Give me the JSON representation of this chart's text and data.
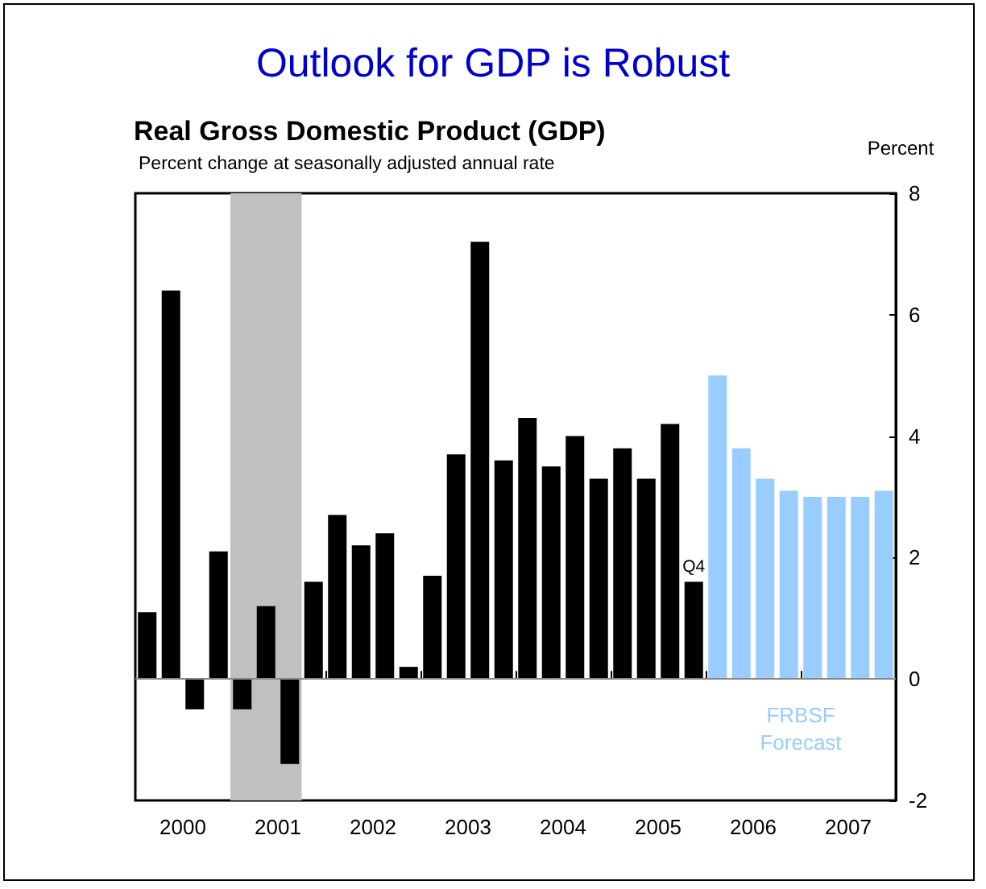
{
  "chart_data": {
    "type": "bar",
    "title": "Outlook for GDP is Robust",
    "subtitle": "Real Gross Domestic Product (GDP)",
    "ylabel": "Percent",
    "annotations": [
      "Percent change at seasonally adjusted annual rate",
      {
        "text": "Q4",
        "x": 2005.875,
        "y": 1.6
      },
      "FRBSF Forecast"
    ],
    "series": [
      {
        "color": "#000000",
        "x": [
          2000.125,
          2000.375,
          2000.625,
          2000.875,
          2001.125,
          2001.375,
          2001.625,
          2001.875,
          2002.125,
          2002.375,
          2002.625,
          2002.875,
          2003.125,
          2003.375,
          2003.625,
          2003.875,
          2004.125,
          2004.375,
          2004.625,
          2004.875,
          2005.125,
          2005.375,
          2005.625,
          2005.875
        ],
        "values": [
          1.1,
          6.4,
          -0.5,
          2.1,
          -0.5,
          1.2,
          -1.4,
          1.6,
          2.7,
          2.2,
          2.4,
          0.2,
          1.7,
          3.7,
          7.2,
          3.6,
          4.3,
          3.5,
          4.0,
          3.3,
          3.8,
          3.3,
          4.2,
          1.6
        ]
      },
      {
        "color": "#99ccff",
        "x": [
          2006.125,
          2006.375,
          2006.625,
          2006.875,
          2007.125,
          2007.375,
          2007.625,
          2007.875
        ],
        "values": [
          5.0,
          3.8,
          3.3,
          3.1,
          3.0,
          3.0,
          3.0,
          3.1
        ]
      }
    ],
    "xlim": [
      2000,
      2008
    ],
    "xticks": [
      {
        "value": 2000.5,
        "label": "2000"
      },
      {
        "value": 2001,
        "label": null
      },
      {
        "value": 2001.5,
        "label": "2001"
      },
      {
        "value": 2002,
        "label": null
      },
      {
        "value": 2002.5,
        "label": "2002"
      },
      {
        "value": 2003,
        "label": null
      },
      {
        "value": 2003.5,
        "label": "2003"
      },
      {
        "value": 2004,
        "label": null
      },
      {
        "value": 2004.5,
        "label": "2004"
      },
      {
        "value": 2005,
        "label": null
      },
      {
        "value": 2005.5,
        "label": "2005"
      },
      {
        "value": 2006,
        "label": null
      },
      {
        "value": 2006.5,
        "label": "2006"
      },
      {
        "value": 2007,
        "label": null
      },
      {
        "value": 2007.5,
        "label": "2007"
      }
    ],
    "ylim": [
      -2,
      8
    ],
    "yticks": [
      -2,
      0,
      2,
      4,
      6,
      8
    ],
    "bands": [
      {
        "axis": "x",
        "from": 2001.0,
        "to": 2001.75,
        "color": "#c0c0c0"
      }
    ],
    "ref_lines": [
      {
        "axis": "y",
        "value": 0,
        "color": "#888888"
      }
    ],
    "grid": false
  }
}
